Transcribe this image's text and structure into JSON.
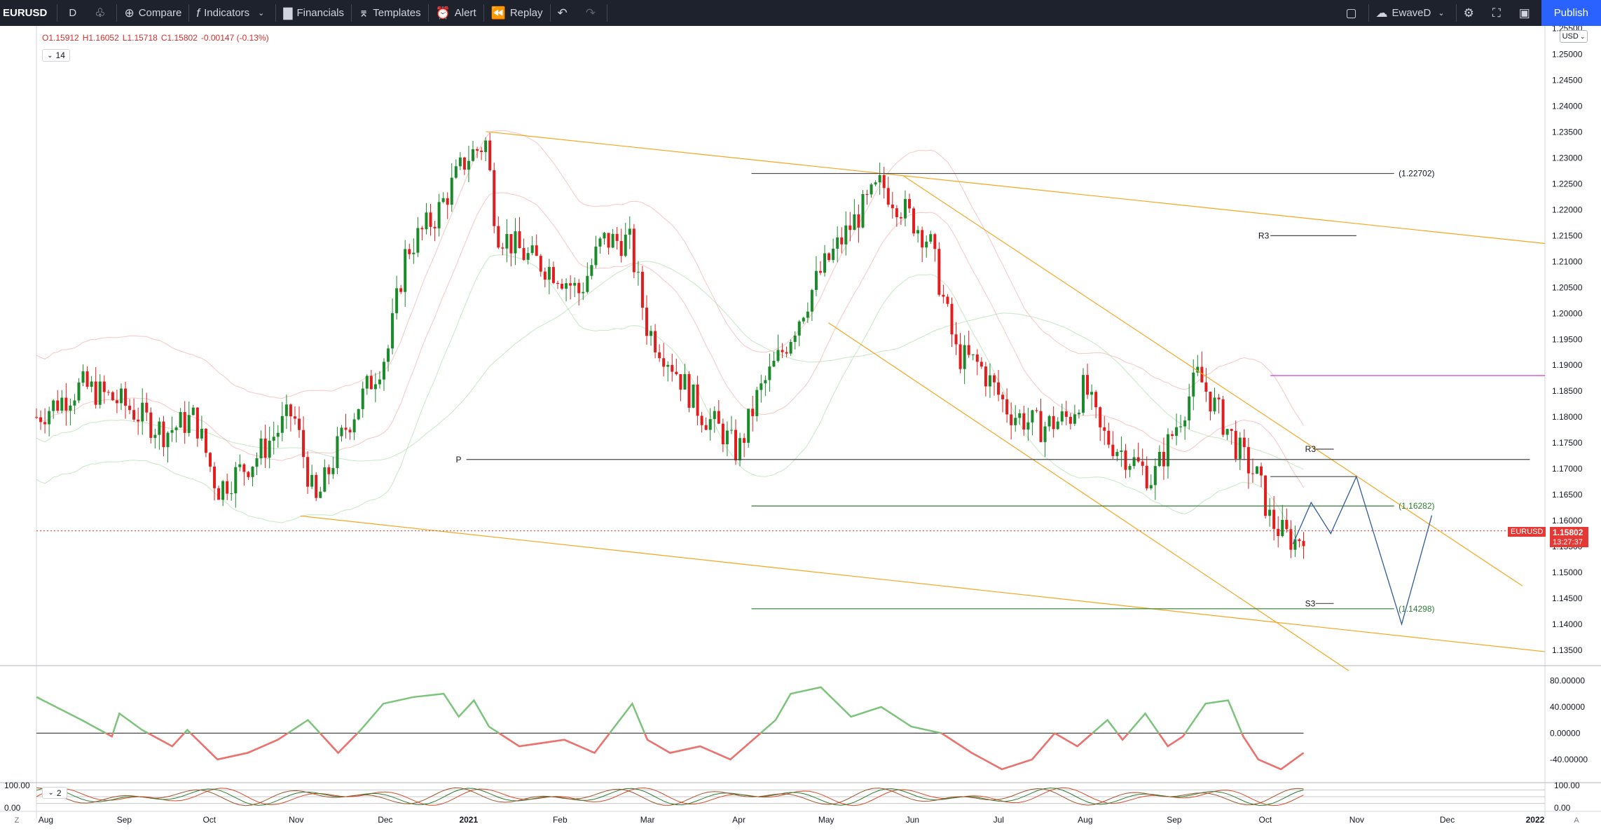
{
  "toolbar": {
    "symbol": "EURUSD",
    "interval": "D",
    "compare": "Compare",
    "indicators": "Indicators",
    "financials": "Financials",
    "templates": "Templates",
    "alert": "Alert",
    "replay": "Replay",
    "layout_name": "EwaveD",
    "publish": "Publish"
  },
  "legend": {
    "open": "O1.15912",
    "high": "H1.16052",
    "low": "L1.15718",
    "close": "C1.15802",
    "change": "-0.00147 (-0.13%)",
    "length": "14",
    "stoch_length": "2"
  },
  "currency": "USD",
  "price_axis": [
    "1.25500",
    "1.25000",
    "1.24500",
    "1.24000",
    "1.23500",
    "1.23000",
    "1.22500",
    "1.22000",
    "1.21500",
    "1.21000",
    "1.20500",
    "1.20000",
    "1.19500",
    "1.19000",
    "1.18500",
    "1.18000",
    "1.17500",
    "1.17000",
    "1.16500",
    "1.16000",
    "1.15500",
    "1.15000",
    "1.14500",
    "1.14000",
    "1.13500"
  ],
  "osc_axis": [
    "80.00000",
    "40.00000",
    "0.00000",
    "-40.00000"
  ],
  "stoch_axis": [
    "100.00",
    "0.00"
  ],
  "time_axis": [
    "Aug",
    "Sep",
    "Oct",
    "Nov",
    "Dec",
    "2021",
    "Feb",
    "Mar",
    "Apr",
    "May",
    "Jun",
    "Jul",
    "Aug",
    "Sep",
    "Oct",
    "Nov",
    "Dec",
    "2022"
  ],
  "annotations": {
    "level_1": "(1.22702)",
    "level_2": "(1.16282)",
    "level_3": "(1.14298)",
    "r3_upper": "R3",
    "r3_lower": "R3",
    "pivot": "P",
    "s3": "S3"
  },
  "current_price": {
    "symbol": "EURUSD",
    "price": "1.15802",
    "countdown": "13:27:37"
  },
  "colors": {
    "up": "#1b8a2a",
    "down": "#e01e1e",
    "channel": "#f5a623",
    "wave": "#2f5b9a",
    "toolbar_bg": "#1e222d",
    "accent": "#2962ff"
  }
}
